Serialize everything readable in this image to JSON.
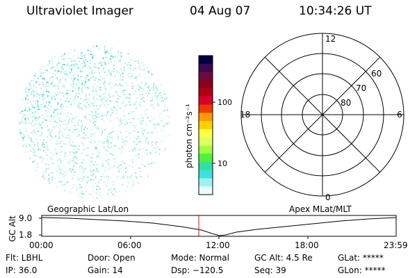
{
  "header": {
    "instrument": "Ultraviolet Imager",
    "date": "04 Aug 07",
    "time": "10:34:26 UT"
  },
  "colorbar": {
    "unit_label": "photon cm⁻²s⁻¹",
    "ticks": [
      "100",
      "10"
    ],
    "colors": [
      "#000040",
      "#3a0a50",
      "#6a0a40",
      "#8a0020",
      "#b00010",
      "#d8002a",
      "#f03a00",
      "#ff9a00",
      "#ffd000",
      "#ffff40",
      "#e0ff60",
      "#a0ff40",
      "#50f040",
      "#30e0a0",
      "#40e0e0",
      "#a0f0f0",
      "#e8ffff"
    ]
  },
  "polar_plot": {
    "mlt_labels": {
      "top": "12",
      "left": "18",
      "right": "6",
      "bottom": "0"
    },
    "lat_labels": [
      "60",
      "70",
      "80"
    ]
  },
  "timeline": {
    "ylabel": "GC Alt",
    "y_ticks": [
      "9.0",
      "1.8"
    ],
    "left_title": "Geographic Lat/Lon",
    "right_title": "Apex MLat/MLT",
    "x_ticks": [
      "00:00",
      "06:00",
      "12:00",
      "18:00",
      "23:59"
    ],
    "marker_color": "#e00000"
  },
  "info": {
    "filter": "Flt: LBHL",
    "ip": "IP: 36.0",
    "door": "Door: Open",
    "gain": "Gain: 14",
    "mode": "Mode: Normal",
    "dsp": "Dsp: −120.5",
    "gc_alt": "GC Alt: 4.5 Re",
    "seq": "Seq: 39",
    "glat": "GLat: *****",
    "glon": "GLon: *****"
  }
}
